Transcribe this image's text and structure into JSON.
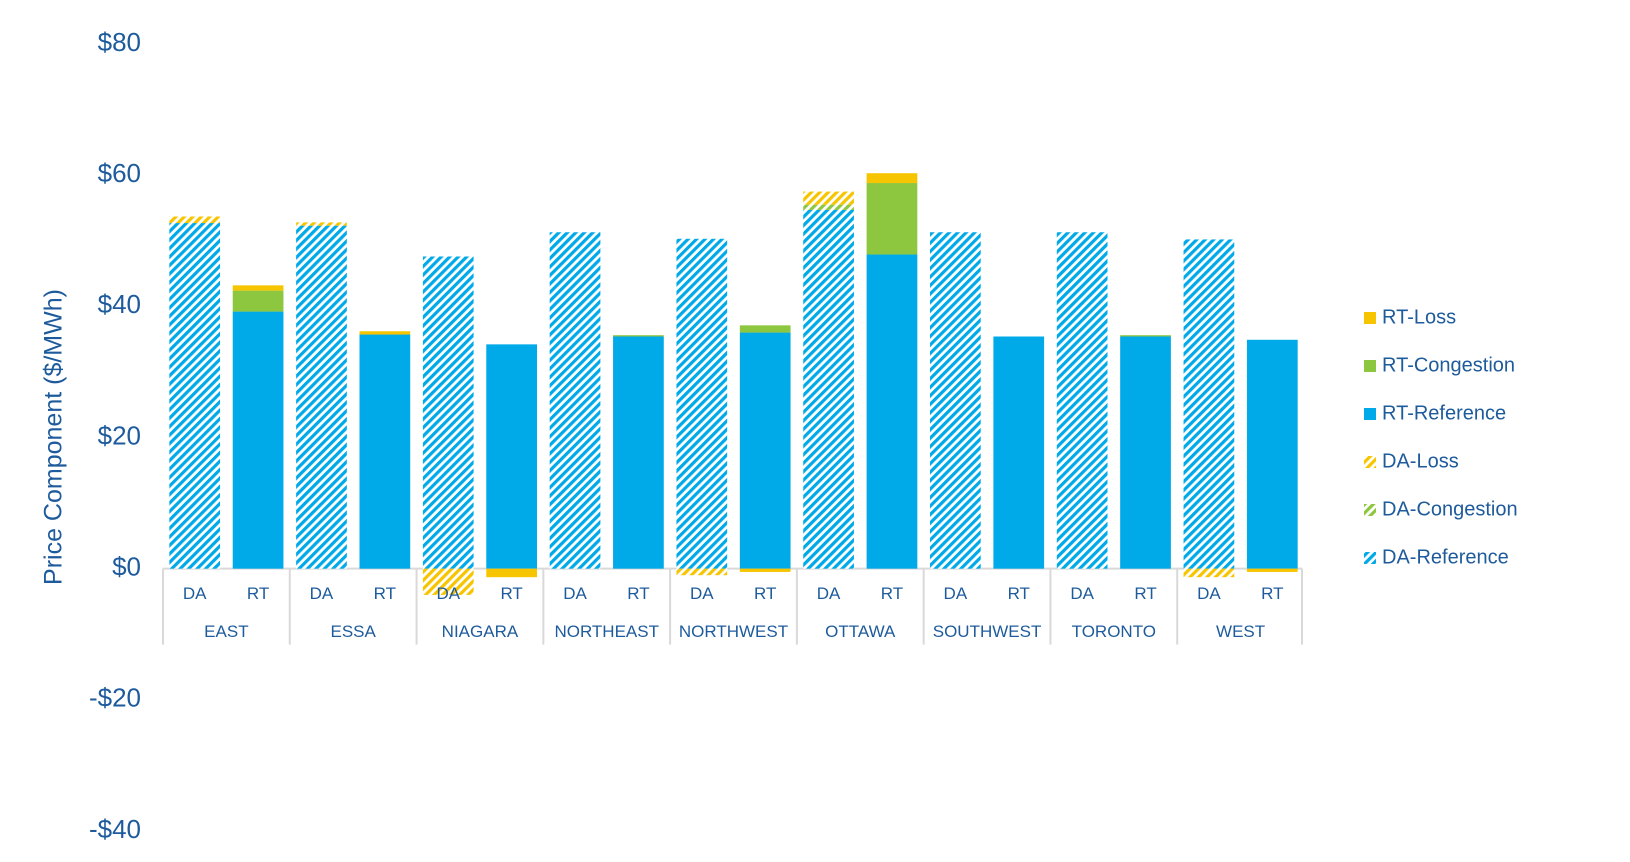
{
  "chart_data": {
    "type": "stacked-bar",
    "y_label": "Price Component ($/MWh)",
    "groups": [
      "EAST",
      "ESSA",
      "NIAGARA",
      "NORTHEAST",
      "NORTHWEST",
      "OTTAWA",
      "SOUTHWEST",
      "TORONTO",
      "WEST"
    ],
    "categories": [
      "DA",
      "RT",
      "DA",
      "RT",
      "DA",
      "RT",
      "DA",
      "RT",
      "DA",
      "RT",
      "DA",
      "RT",
      "DA",
      "RT",
      "DA",
      "RT",
      "DA",
      "RT"
    ],
    "ylim": [
      -40,
      80
    ],
    "yticks": [
      {
        "value": -40,
        "label": "-$40"
      },
      {
        "value": -20,
        "label": "-$20"
      },
      {
        "value": 0,
        "label": "$0"
      },
      {
        "value": 20,
        "label": "$20"
      },
      {
        "value": 40,
        "label": "$40"
      },
      {
        "value": 60,
        "label": "$60"
      },
      {
        "value": 80,
        "label": "$80"
      }
    ],
    "grid": false,
    "legend": "right",
    "series": [
      {
        "name": "DA-Reference",
        "color": "#00a9e8",
        "pattern": "hatch",
        "values": [
          52.7,
          null,
          52.3,
          null,
          47.6,
          null,
          51.3,
          null,
          50.3,
          null,
          54.7,
          null,
          51.3,
          null,
          51.3,
          null,
          50.2,
          null
        ]
      },
      {
        "name": "DA-Congestion",
        "color": "#8dc63f",
        "pattern": "hatch",
        "values": [
          0,
          null,
          0,
          null,
          0,
          null,
          0,
          null,
          0,
          null,
          0.8,
          null,
          0,
          null,
          0,
          null,
          0,
          null
        ]
      },
      {
        "name": "DA-Loss",
        "color": "#f7c500",
        "pattern": "hatch",
        "values": [
          1.0,
          null,
          0.5,
          null,
          -4.0,
          null,
          0,
          null,
          -1.0,
          null,
          2.0,
          null,
          0,
          null,
          0,
          null,
          -1.3,
          null
        ]
      },
      {
        "name": "RT-Reference",
        "color": "#00a9e8",
        "pattern": "solid",
        "values": [
          null,
          39.2,
          null,
          35.7,
          null,
          34.2,
          null,
          35.4,
          null,
          36.0,
          null,
          47.9,
          null,
          35.4,
          null,
          35.4,
          null,
          34.9
        ]
      },
      {
        "name": "RT-Congestion",
        "color": "#8dc63f",
        "pattern": "solid",
        "values": [
          null,
          3.2,
          null,
          0,
          null,
          0,
          null,
          0.2,
          null,
          1.1,
          null,
          10.9,
          null,
          0,
          null,
          0.2,
          null,
          0
        ]
      },
      {
        "name": "RT-Loss",
        "color": "#f7c500",
        "pattern": "solid",
        "values": [
          null,
          0.8,
          null,
          0.5,
          null,
          -1.3,
          null,
          0,
          null,
          -0.5,
          null,
          1.5,
          null,
          0,
          null,
          0,
          null,
          -0.5
        ]
      }
    ]
  }
}
